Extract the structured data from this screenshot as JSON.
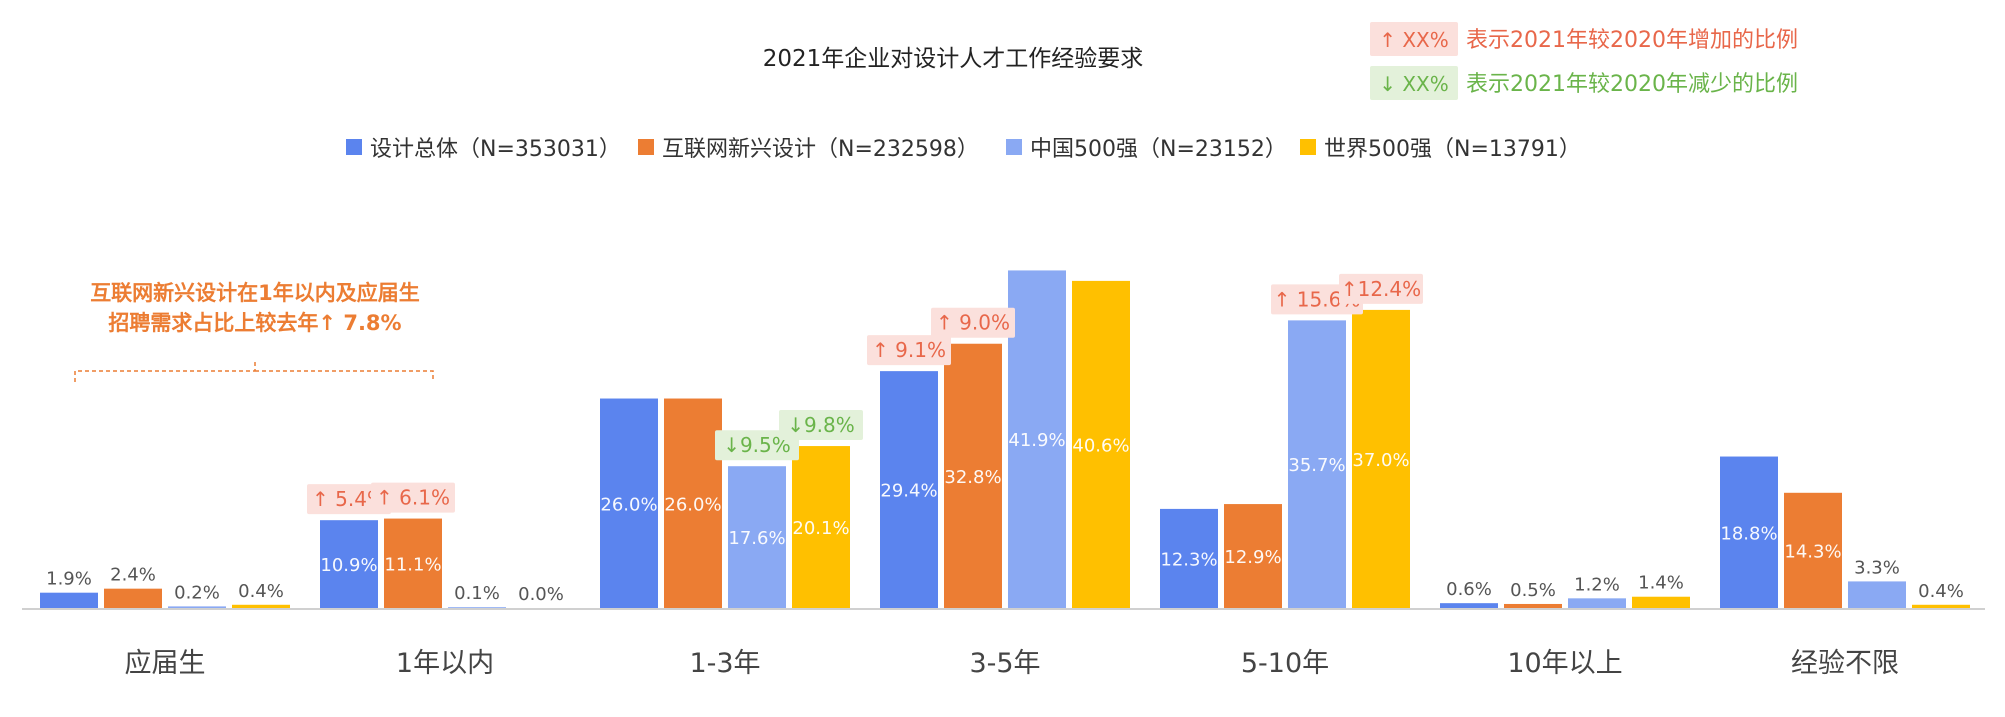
{
  "chart_data": {
    "type": "bar",
    "title": "2021年企业对设计人才工作经验要求",
    "categories": [
      "应届生",
      "1年以内",
      "1-3年",
      "3-5年",
      "5-10年",
      "10年以上",
      "经验不限"
    ],
    "series": [
      {
        "name": "设计总体（N=353031）",
        "color": "#5b84ee",
        "values": [
          1.9,
          10.9,
          26.0,
          29.4,
          12.3,
          0.6,
          18.8
        ]
      },
      {
        "name": "互联网新兴设计（N=232598）",
        "color": "#ec7d33",
        "values": [
          2.4,
          11.1,
          26.0,
          32.8,
          12.9,
          0.5,
          14.3
        ]
      },
      {
        "name": "中国500强（N=23152）",
        "color": "#8aa9f3",
        "values": [
          0.2,
          0.1,
          17.6,
          41.9,
          35.7,
          1.2,
          3.3
        ]
      },
      {
        "name": "世界500强（N=13791）",
        "color": "#ffc000",
        "values": [
          0.4,
          0.0,
          20.1,
          40.6,
          37.0,
          1.4,
          0.4
        ]
      }
    ],
    "value_labels": [
      [
        "1.9%",
        "10.9%",
        "26.0%",
        "29.4%",
        "12.3%",
        "0.6%",
        "18.8%"
      ],
      [
        "2.4%",
        "11.1%",
        "26.0%",
        "32.8%",
        "12.9%",
        "0.5%",
        "14.3%"
      ],
      [
        "0.2%",
        "0.1%",
        "17.6%",
        "41.9%",
        "35.7%",
        "1.2%",
        "3.3%"
      ],
      [
        "0.4%",
        "0.0%",
        "20.1%",
        "40.6%",
        "37.0%",
        "1.4%",
        "0.4%"
      ]
    ],
    "ylim": [
      0,
      42
    ],
    "legend_position": "top",
    "legend_note": {
      "increase": {
        "badge": "↑ XX%",
        "text": "表示2021年较2020年增加的比例",
        "color": "#e8674a",
        "bg": "#fbe0dc"
      },
      "decrease": {
        "badge": "↓ XX%",
        "text": "表示2021年较2020年减少的比例",
        "color": "#6ab44a",
        "bg": "#e3f1da"
      }
    },
    "change_badges": [
      {
        "series": 0,
        "category": 1,
        "text": "↑ 5.4%",
        "direction": "up"
      },
      {
        "series": 1,
        "category": 1,
        "text": "↑ 6.1%",
        "direction": "up"
      },
      {
        "series": 2,
        "category": 2,
        "text": "↓9.5%",
        "direction": "down"
      },
      {
        "series": 3,
        "category": 2,
        "text": "↓9.8%",
        "direction": "down"
      },
      {
        "series": 0,
        "category": 3,
        "text": "↑ 9.1%",
        "direction": "up"
      },
      {
        "series": 1,
        "category": 3,
        "text": "↑ 9.0%",
        "direction": "up"
      },
      {
        "series": 2,
        "category": 4,
        "text": "↑ 15.6%",
        "direction": "up"
      },
      {
        "series": 3,
        "category": 4,
        "text": "↑12.4%",
        "direction": "up"
      }
    ],
    "annotation": {
      "lines": [
        "互联网新兴设计在1年以内及应届生",
        "招聘需求占比上较去年↑ 7.8%"
      ],
      "color": "#ec7d33"
    }
  }
}
